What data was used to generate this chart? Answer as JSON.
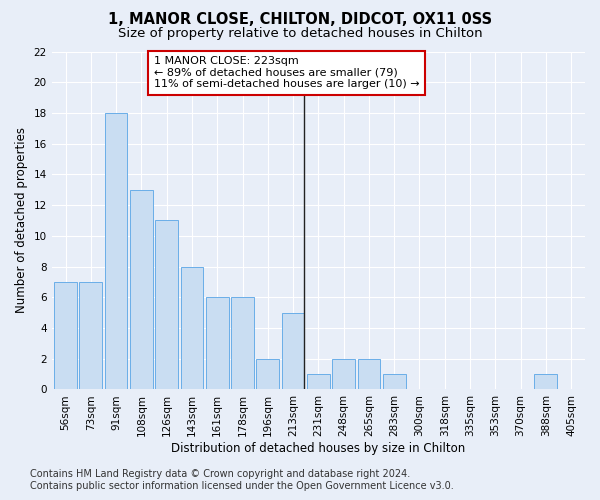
{
  "title": "1, MANOR CLOSE, CHILTON, DIDCOT, OX11 0SS",
  "subtitle": "Size of property relative to detached houses in Chilton",
  "xlabel": "Distribution of detached houses by size in Chilton",
  "ylabel": "Number of detached properties",
  "categories": [
    "56sqm",
    "73sqm",
    "91sqm",
    "108sqm",
    "126sqm",
    "143sqm",
    "161sqm",
    "178sqm",
    "196sqm",
    "213sqm",
    "231sqm",
    "248sqm",
    "265sqm",
    "283sqm",
    "300sqm",
    "318sqm",
    "335sqm",
    "353sqm",
    "370sqm",
    "388sqm",
    "405sqm"
  ],
  "values": [
    7,
    7,
    18,
    13,
    11,
    8,
    6,
    6,
    2,
    5,
    1,
    2,
    2,
    1,
    0,
    0,
    0,
    0,
    0,
    1,
    0
  ],
  "bar_color": "#c9ddf2",
  "bar_edge_color": "#6aaee8",
  "highlight_bar_index": 9,
  "highlight_line_color": "#222222",
  "annotation_text": "1 MANOR CLOSE: 223sqm\n← 89% of detached houses are smaller (79)\n11% of semi-detached houses are larger (10) →",
  "annotation_box_color": "#ffffff",
  "annotation_box_edge_color": "#cc0000",
  "ylim": [
    0,
    22
  ],
  "yticks": [
    0,
    2,
    4,
    6,
    8,
    10,
    12,
    14,
    16,
    18,
    20,
    22
  ],
  "footer_line1": "Contains HM Land Registry data © Crown copyright and database right 2024.",
  "footer_line2": "Contains public sector information licensed under the Open Government Licence v3.0.",
  "bg_color": "#e8eef8",
  "grid_color": "#ffffff",
  "title_fontsize": 10.5,
  "subtitle_fontsize": 9.5,
  "axis_label_fontsize": 8.5,
  "tick_fontsize": 7.5,
  "footer_fontsize": 7,
  "annotation_fontsize": 8
}
